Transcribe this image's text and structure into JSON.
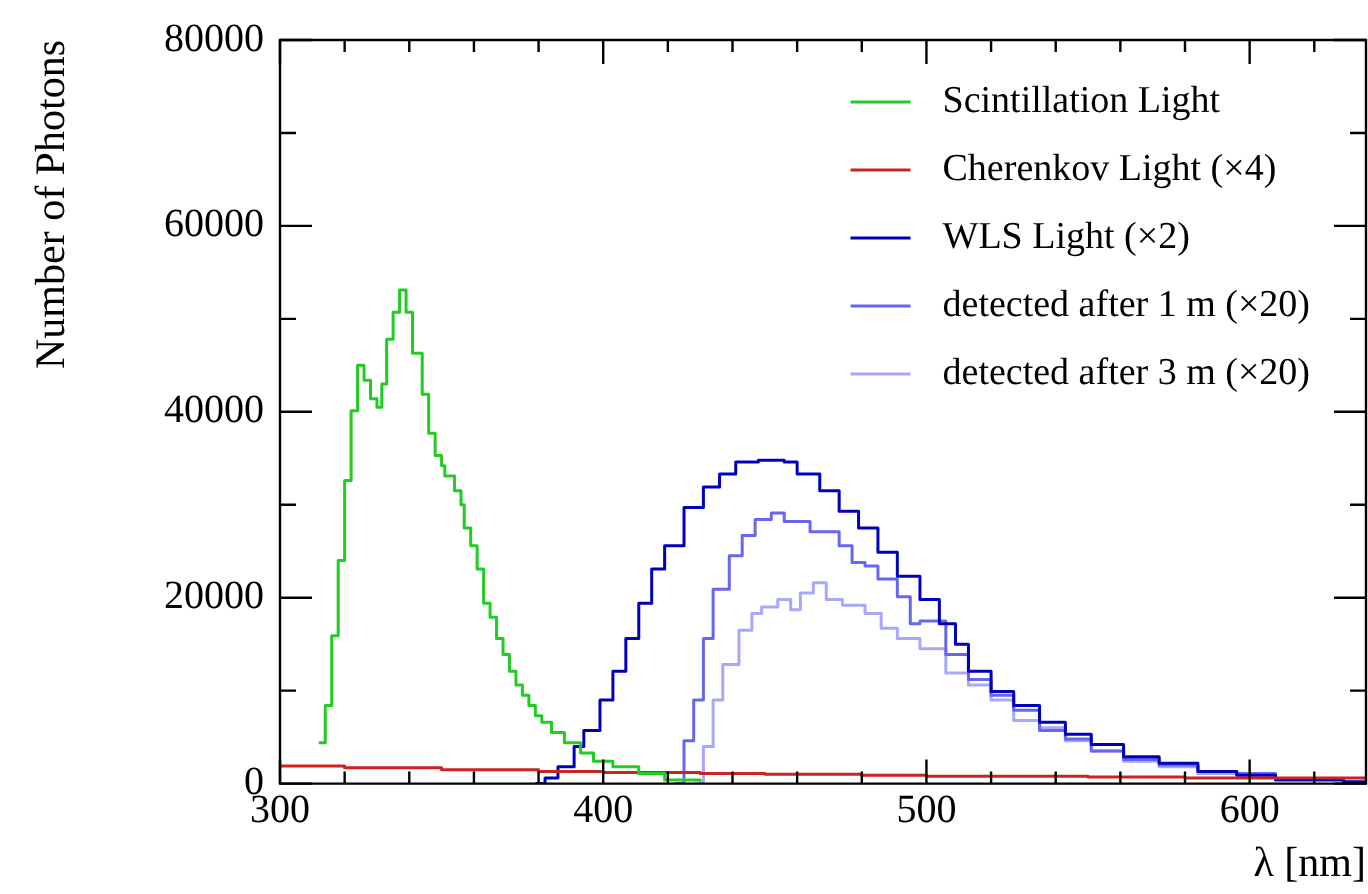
{
  "chart_data": {
    "type": "step",
    "xlabel": "λ [nm]",
    "ylabel": "Number of Photons",
    "xlim": [
      300,
      636
    ],
    "ylim": [
      0,
      80000
    ],
    "xticks": [
      300,
      {
        "value": 320,
        "label": null
      },
      {
        "value": 340,
        "label": null
      },
      {
        "value": 360,
        "label": null
      },
      {
        "value": 380,
        "label": null
      },
      400,
      {
        "value": 420,
        "label": null
      },
      {
        "value": 440,
        "label": null
      },
      {
        "value": 460,
        "label": null
      },
      {
        "value": 480,
        "label": null
      },
      500,
      {
        "value": 520,
        "label": null
      },
      {
        "value": 540,
        "label": null
      },
      {
        "value": 560,
        "label": null
      },
      {
        "value": 580,
        "label": null
      },
      600,
      {
        "value": 620,
        "label": null
      }
    ],
    "yticks": [
      0,
      {
        "value": 10000,
        "label": null
      },
      20000,
      {
        "value": 30000,
        "label": null
      },
      40000,
      {
        "value": 50000,
        "label": null
      },
      60000,
      {
        "value": 70000,
        "label": null
      },
      80000
    ],
    "grid": false,
    "legend": "top right",
    "marker": "none",
    "line_style": "solid",
    "series": [
      {
        "name": "Scintillation Light",
        "color": "#22cc22",
        "x": [
          312,
          314,
          316,
          318,
          320,
          322,
          324,
          326,
          328,
          330,
          331.5,
          333,
          335,
          337,
          339,
          341,
          344,
          346,
          348,
          350,
          351,
          354,
          356,
          357,
          359,
          361,
          363,
          365,
          367,
          369,
          371,
          373,
          375,
          377,
          379,
          381,
          384,
          388,
          393,
          397,
          403,
          411,
          419,
          430
        ],
        "values": [
          4400,
          8400,
          15900,
          24000,
          32600,
          40100,
          45000,
          43400,
          41400,
          40500,
          43000,
          47800,
          50700,
          53100,
          50700,
          46300,
          41900,
          37700,
          35300,
          34200,
          33100,
          31500,
          30000,
          27500,
          25600,
          23100,
          19400,
          17900,
          15600,
          13900,
          12100,
          10600,
          9500,
          8400,
          7300,
          6600,
          5500,
          4400,
          3300,
          2400,
          1800,
          1100,
          400,
          200
        ]
      },
      {
        "name": "Cherenkov Light (×4)",
        "color": "#cc2222",
        "x": [
          300,
          320,
          350,
          380,
          400,
          430,
          450,
          480,
          500,
          530,
          550,
          580,
          600,
          636
        ],
        "values": [
          1900,
          1700,
          1500,
          1300,
          1200,
          1100,
          1000,
          900,
          800,
          800,
          700,
          600,
          600,
          500
        ]
      },
      {
        "name": "WLS Light (×2)",
        "color": "#0000bb",
        "x": [
          379,
          382,
          386,
          391,
          394,
          399,
          403,
          407,
          411,
          415,
          419,
          425,
          431,
          436,
          441,
          448,
          456,
          460,
          467,
          473,
          479,
          485,
          491,
          498,
          504,
          509,
          513,
          520,
          527,
          535,
          543,
          551,
          561,
          572,
          584,
          596,
          608,
          629,
          636
        ],
        "values": [
          0,
          600,
          1800,
          4000,
          5700,
          9000,
          12100,
          15600,
          19400,
          23100,
          25600,
          29700,
          31900,
          33300,
          34600,
          34800,
          34600,
          33300,
          31500,
          29300,
          27500,
          24900,
          22300,
          19800,
          17200,
          15000,
          12100,
          9900,
          8400,
          6600,
          5300,
          4200,
          2900,
          2200,
          1300,
          900,
          400,
          200,
          200
        ]
      },
      {
        "name": "detected after 1 m (×20)",
        "color": "#6666ee",
        "x": [
          422,
          425,
          428,
          431,
          434,
          439,
          443,
          447,
          452,
          456,
          460,
          464,
          468,
          473,
          477,
          481,
          485,
          491,
          495,
          498,
          506,
          513,
          520,
          527,
          535,
          543,
          551,
          561,
          572,
          584,
          596,
          608
        ],
        "values": [
          0,
          4600,
          9000,
          15600,
          20900,
          24500,
          26700,
          28400,
          29100,
          28200,
          28200,
          27100,
          27100,
          25600,
          23800,
          23400,
          22000,
          20100,
          17200,
          17500,
          13900,
          11200,
          9500,
          7900,
          5700,
          4800,
          3500,
          2600,
          2000,
          1300,
          1100,
          400
        ]
      },
      {
        "name": "detected after 3 m (×20)",
        "color": "#a8a8f8",
        "x": [
          428,
          431,
          434,
          437,
          442,
          446,
          449,
          454,
          458,
          461,
          465,
          469,
          474,
          481,
          486,
          491,
          498,
          506,
          513,
          520,
          527,
          535,
          543,
          551,
          561,
          572,
          584,
          596,
          608
        ],
        "values": [
          0,
          4000,
          9000,
          12800,
          16500,
          18300,
          19000,
          19800,
          18700,
          20500,
          21600,
          19800,
          19200,
          18300,
          16700,
          15600,
          14500,
          11900,
          10600,
          9000,
          6800,
          6000,
          4600,
          3500,
          2400,
          1800,
          1100,
          900,
          400
        ]
      }
    ]
  }
}
